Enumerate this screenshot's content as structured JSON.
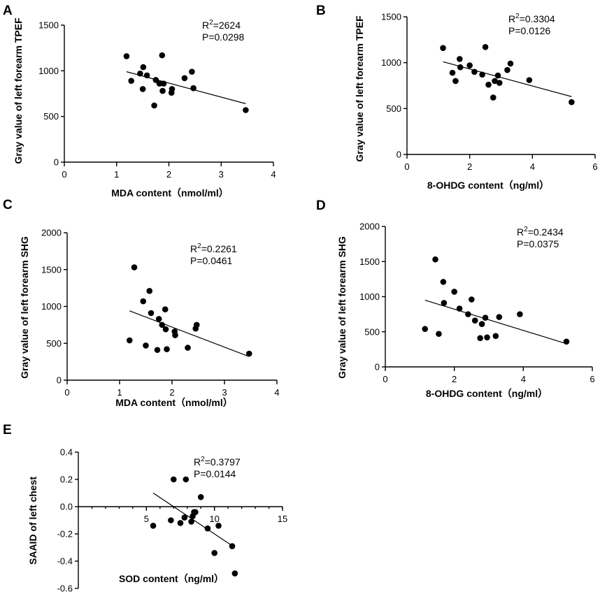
{
  "chart_data": [
    {
      "panel": "A",
      "type": "scatter",
      "xlabel": "MDA content（nmol/ml）",
      "ylabel": "Gray value of left forearm TPEF",
      "xlim": [
        0,
        4
      ],
      "ylim": [
        0,
        1500
      ],
      "xticks": [
        0,
        1,
        2,
        3,
        4
      ],
      "yticks": [
        0,
        500,
        1000,
        1500
      ],
      "x_tick_labels": [
        "0",
        "1",
        "2",
        "3",
        "4"
      ],
      "y_tick_labels": [
        "0",
        "500",
        "1000",
        "1500"
      ],
      "stats": {
        "r2": "R",
        "r2_sup": "2",
        "r2_value": "=2624",
        "p": "P=0.0298"
      },
      "points": [
        [
          1.19,
          1160
        ],
        [
          1.28,
          890
        ],
        [
          1.45,
          970
        ],
        [
          1.5,
          800
        ],
        [
          1.51,
          1040
        ],
        [
          1.58,
          950
        ],
        [
          1.72,
          620
        ],
        [
          1.75,
          900
        ],
        [
          1.82,
          860
        ],
        [
          1.87,
          1170
        ],
        [
          1.88,
          780
        ],
        [
          1.9,
          860
        ],
        [
          2.05,
          760
        ],
        [
          2.06,
          800
        ],
        [
          2.3,
          920
        ],
        [
          2.44,
          990
        ],
        [
          2.47,
          810
        ],
        [
          3.47,
          570
        ]
      ],
      "fit": [
        [
          1.19,
          990
        ],
        [
          3.47,
          640
        ]
      ]
    },
    {
      "panel": "B",
      "type": "scatter",
      "xlabel": "8-OHDG content（ng/ml）",
      "ylabel": "Gray value of left forearm TPEF",
      "xlim": [
        0,
        6
      ],
      "ylim": [
        0,
        1500
      ],
      "xticks": [
        0,
        2,
        4,
        6
      ],
      "yticks": [
        0,
        500,
        1000,
        1500
      ],
      "x_tick_labels": [
        "0",
        "2",
        "4",
        "6"
      ],
      "y_tick_labels": [
        "0",
        "500",
        "1000",
        "1500"
      ],
      "stats": {
        "r2": "R",
        "r2_sup": "2",
        "r2_value": "=0.3304",
        "p": "P=0.0126"
      },
      "points": [
        [
          1.15,
          1160
        ],
        [
          1.45,
          890
        ],
        [
          1.55,
          800
        ],
        [
          1.68,
          1040
        ],
        [
          1.7,
          950
        ],
        [
          2.0,
          970
        ],
        [
          2.15,
          900
        ],
        [
          2.4,
          870
        ],
        [
          2.5,
          1170
        ],
        [
          2.6,
          760
        ],
        [
          2.75,
          620
        ],
        [
          2.8,
          800
        ],
        [
          2.9,
          860
        ],
        [
          2.95,
          780
        ],
        [
          3.2,
          920
        ],
        [
          3.3,
          990
        ],
        [
          3.9,
          810
        ],
        [
          5.25,
          570
        ]
      ],
      "fit": [
        [
          1.15,
          1010
        ],
        [
          5.25,
          630
        ]
      ]
    },
    {
      "panel": "C",
      "type": "scatter",
      "xlabel": "MDA content（nmol/ml）",
      "ylabel": "Gray value of left forearm SHG",
      "xlim": [
        0,
        4
      ],
      "ylim": [
        0,
        2000
      ],
      "xticks": [
        0,
        1,
        2,
        3,
        4
      ],
      "yticks": [
        0,
        500,
        1000,
        1500,
        2000
      ],
      "x_tick_labels": [
        "0",
        "1",
        "2",
        "3",
        "4"
      ],
      "y_tick_labels": [
        "0",
        "500",
        "1000",
        "1500",
        "2000"
      ],
      "stats": {
        "r2": "R",
        "r2_sup": "2",
        "r2_value": "=0.2261",
        "p": "P=0.0461"
      },
      "points": [
        [
          1.19,
          540
        ],
        [
          1.28,
          1530
        ],
        [
          1.45,
          1070
        ],
        [
          1.5,
          470
        ],
        [
          1.57,
          1210
        ],
        [
          1.6,
          910
        ],
        [
          1.72,
          410
        ],
        [
          1.75,
          830
        ],
        [
          1.81,
          750
        ],
        [
          1.87,
          960
        ],
        [
          1.88,
          690
        ],
        [
          1.9,
          420
        ],
        [
          2.05,
          660
        ],
        [
          2.06,
          610
        ],
        [
          2.3,
          440
        ],
        [
          2.45,
          700
        ],
        [
          2.47,
          750
        ],
        [
          3.47,
          360
        ]
      ],
      "fit": [
        [
          1.19,
          940
        ],
        [
          3.47,
          320
        ]
      ]
    },
    {
      "panel": "D",
      "type": "scatter",
      "xlabel": "8-OHDG content（ng/ml）",
      "ylabel": "Gray value of left forearm SHG",
      "xlim": [
        0,
        6
      ],
      "ylim": [
        0,
        2000
      ],
      "xticks": [
        0,
        2,
        4,
        6
      ],
      "yticks": [
        0,
        500,
        1000,
        1500,
        2000
      ],
      "x_tick_labels": [
        "0",
        "2",
        "4",
        "6"
      ],
      "y_tick_labels": [
        "0",
        "500",
        "1000",
        "1500",
        "2000"
      ],
      "stats": {
        "r2": "R",
        "r2_sup": "2",
        "r2_value": "=0.2434",
        "p": "P=0.0375"
      },
      "points": [
        [
          1.15,
          540
        ],
        [
          1.45,
          1530
        ],
        [
          1.55,
          470
        ],
        [
          1.68,
          1210
        ],
        [
          1.7,
          910
        ],
        [
          2.0,
          1070
        ],
        [
          2.15,
          830
        ],
        [
          2.4,
          750
        ],
        [
          2.5,
          960
        ],
        [
          2.6,
          660
        ],
        [
          2.75,
          410
        ],
        [
          2.8,
          610
        ],
        [
          2.9,
          700
        ],
        [
          2.95,
          420
        ],
        [
          3.2,
          440
        ],
        [
          3.3,
          710
        ],
        [
          3.9,
          750
        ],
        [
          5.25,
          360
        ]
      ],
      "fit": [
        [
          1.15,
          950
        ],
        [
          5.25,
          330
        ]
      ]
    },
    {
      "panel": "E",
      "type": "scatter",
      "xlabel": "SOD content（ng/ml）",
      "ylabel": "SAAID of left chest",
      "xlim": [
        0,
        15
      ],
      "ylim": [
        -0.6,
        0.4
      ],
      "xticks": [
        5,
        10,
        15
      ],
      "yticks": [
        -0.6,
        -0.4,
        -0.2,
        0.0,
        0.2,
        0.4
      ],
      "x_tick_labels": [
        "5",
        "10",
        "15"
      ],
      "y_tick_labels": [
        "-0.6",
        "-0.4",
        "-0.2",
        "0.0",
        "0.2",
        "0.4"
      ],
      "stats": {
        "r2": "R",
        "r2_sup": "2",
        "r2_value": "=0.3797",
        "p": "P=0.0144"
      },
      "points": [
        [
          5.5,
          -0.14
        ],
        [
          6.8,
          -0.1
        ],
        [
          7.0,
          0.2
        ],
        [
          7.5,
          -0.12
        ],
        [
          7.8,
          -0.08
        ],
        [
          7.9,
          0.2
        ],
        [
          8.3,
          -0.11
        ],
        [
          8.4,
          -0.07
        ],
        [
          8.5,
          -0.04
        ],
        [
          8.6,
          -0.04
        ],
        [
          9.0,
          0.07
        ],
        [
          9.5,
          -0.16
        ],
        [
          10.0,
          -0.34
        ],
        [
          10.3,
          -0.14
        ],
        [
          11.3,
          -0.29
        ],
        [
          11.5,
          -0.49
        ]
      ],
      "fit": [
        [
          5.5,
          0.1
        ],
        [
          11.5,
          -0.3
        ]
      ]
    }
  ]
}
